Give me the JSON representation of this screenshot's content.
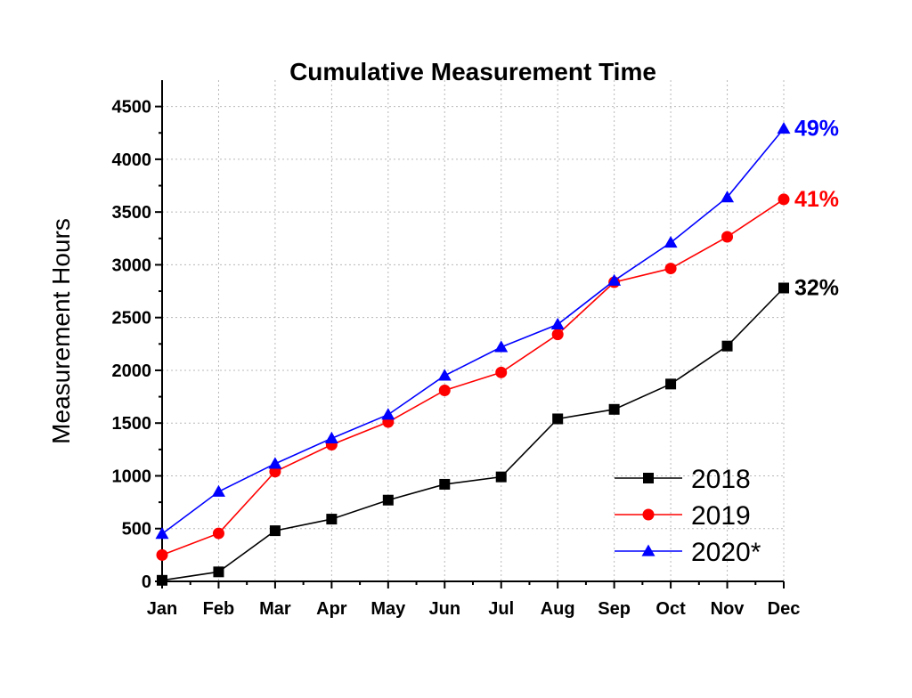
{
  "chart_data": {
    "type": "line",
    "title": "Cumulative Measurement Time",
    "ylabel": "Measurement Hours",
    "xlabel": "",
    "categories": [
      "Jan",
      "Feb",
      "Mar",
      "Apr",
      "May",
      "Jun",
      "Jul",
      "Aug",
      "Sep",
      "Oct",
      "Nov",
      "Dec"
    ],
    "ylim": [
      0,
      4750
    ],
    "yticks": [
      0,
      500,
      1000,
      1500,
      2000,
      2500,
      3000,
      3500,
      4000,
      4500
    ],
    "grid": true,
    "legend_position": "bottom-right",
    "series": [
      {
        "name": "2018",
        "color": "#000000",
        "marker": "square",
        "values": [
          10,
          90,
          480,
          590,
          770,
          920,
          990,
          1540,
          1630,
          1870,
          2230,
          2780
        ],
        "end_label": "32%"
      },
      {
        "name": "2019",
        "color": "#ff0000",
        "marker": "circle",
        "values": [
          250,
          455,
          1040,
          1295,
          1510,
          1810,
          1980,
          2340,
          2835,
          2965,
          3265,
          3620
        ],
        "end_label": "41%"
      },
      {
        "name": "2020*",
        "color": "#0000ff",
        "marker": "triangle",
        "values": [
          450,
          850,
          1115,
          1355,
          1580,
          1950,
          2220,
          2435,
          2850,
          3210,
          3640,
          4290
        ],
        "end_label": "49%"
      }
    ]
  }
}
